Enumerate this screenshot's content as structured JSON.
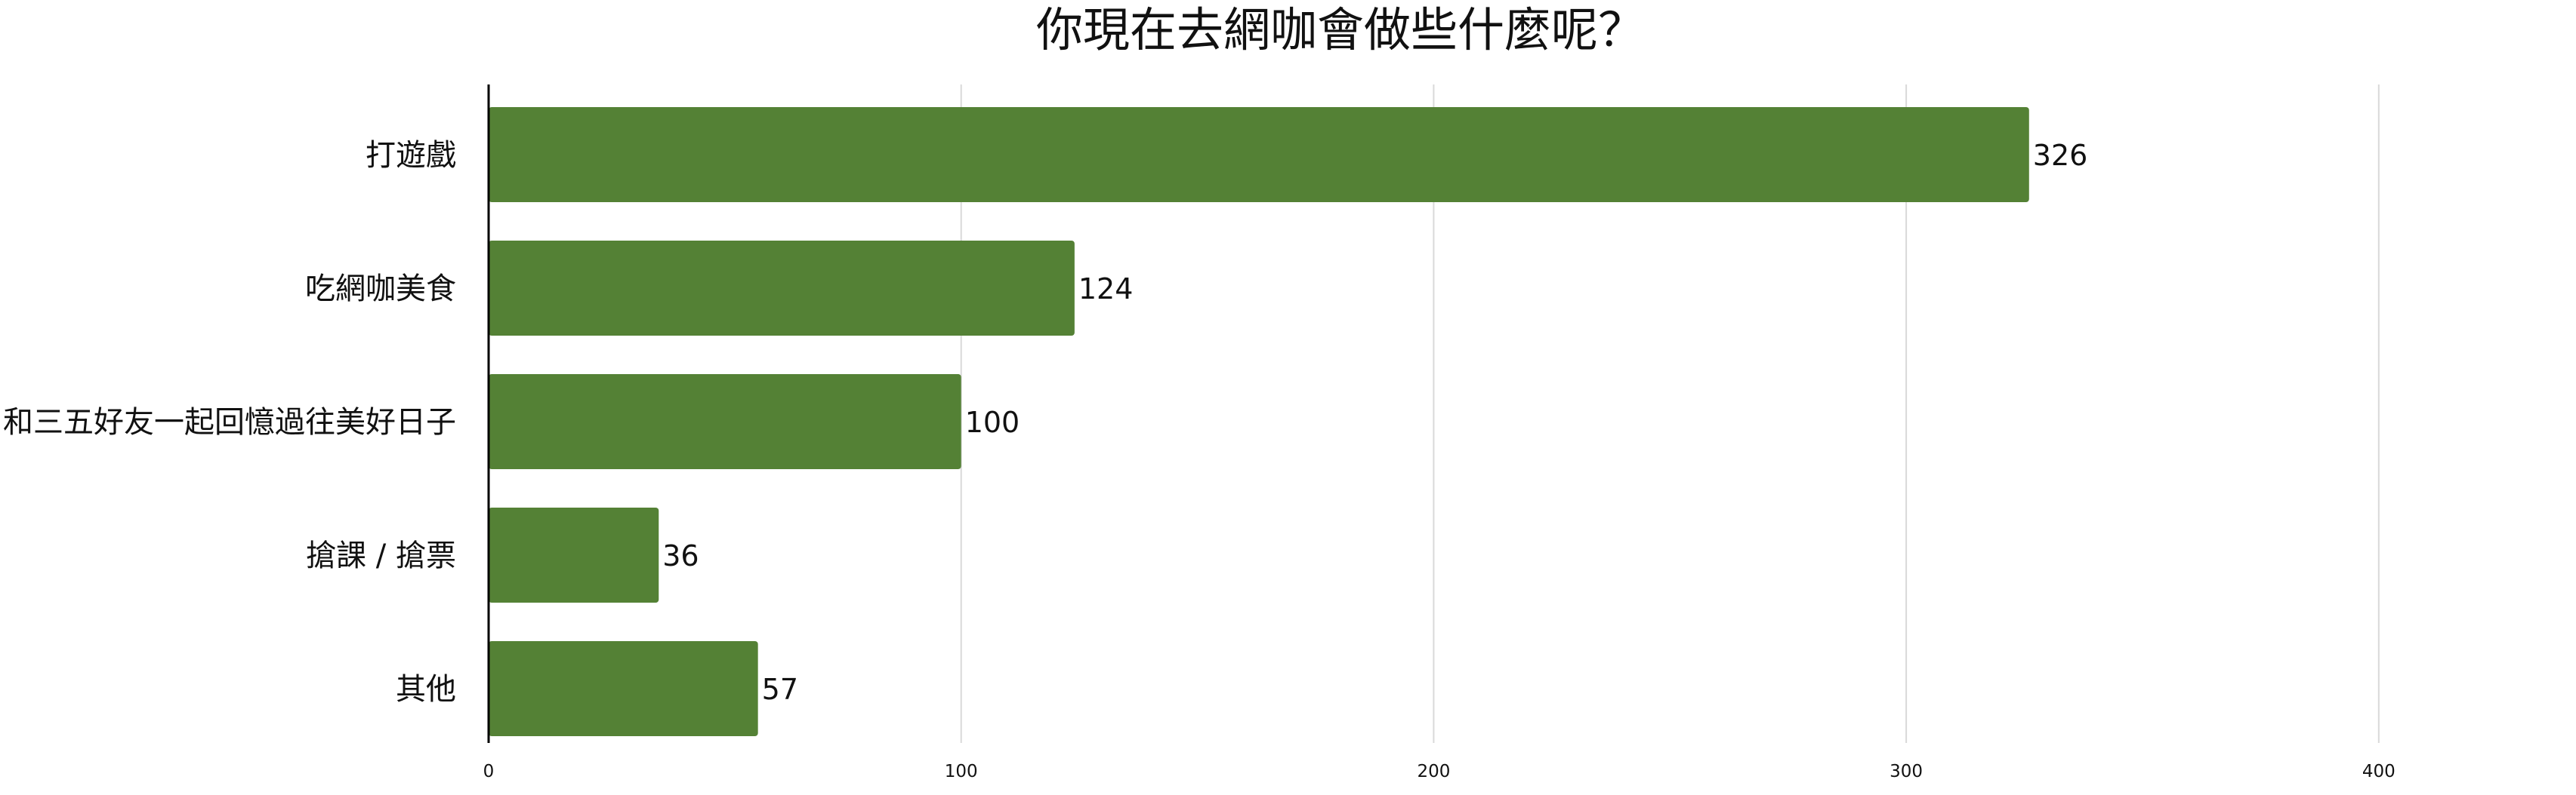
{
  "chart_data": {
    "type": "bar",
    "orientation": "horizontal",
    "title": "你現在去網咖會做些什麼呢？",
    "categories": [
      "打遊戲",
      "吃網咖美食",
      "和三五好友一起回憶過往美好日子",
      "搶課 / 搶票",
      "其他"
    ],
    "series": [
      {
        "values": [
          326,
          124,
          100,
          36,
          57
        ]
      }
    ],
    "xlim": [
      0,
      440
    ],
    "xticks": [
      0,
      100,
      200,
      300,
      400
    ],
    "grid": true,
    "legend": "none",
    "bar_color": "#548135",
    "grid_color": "#d9d9d9",
    "axis_color": "#000000"
  }
}
